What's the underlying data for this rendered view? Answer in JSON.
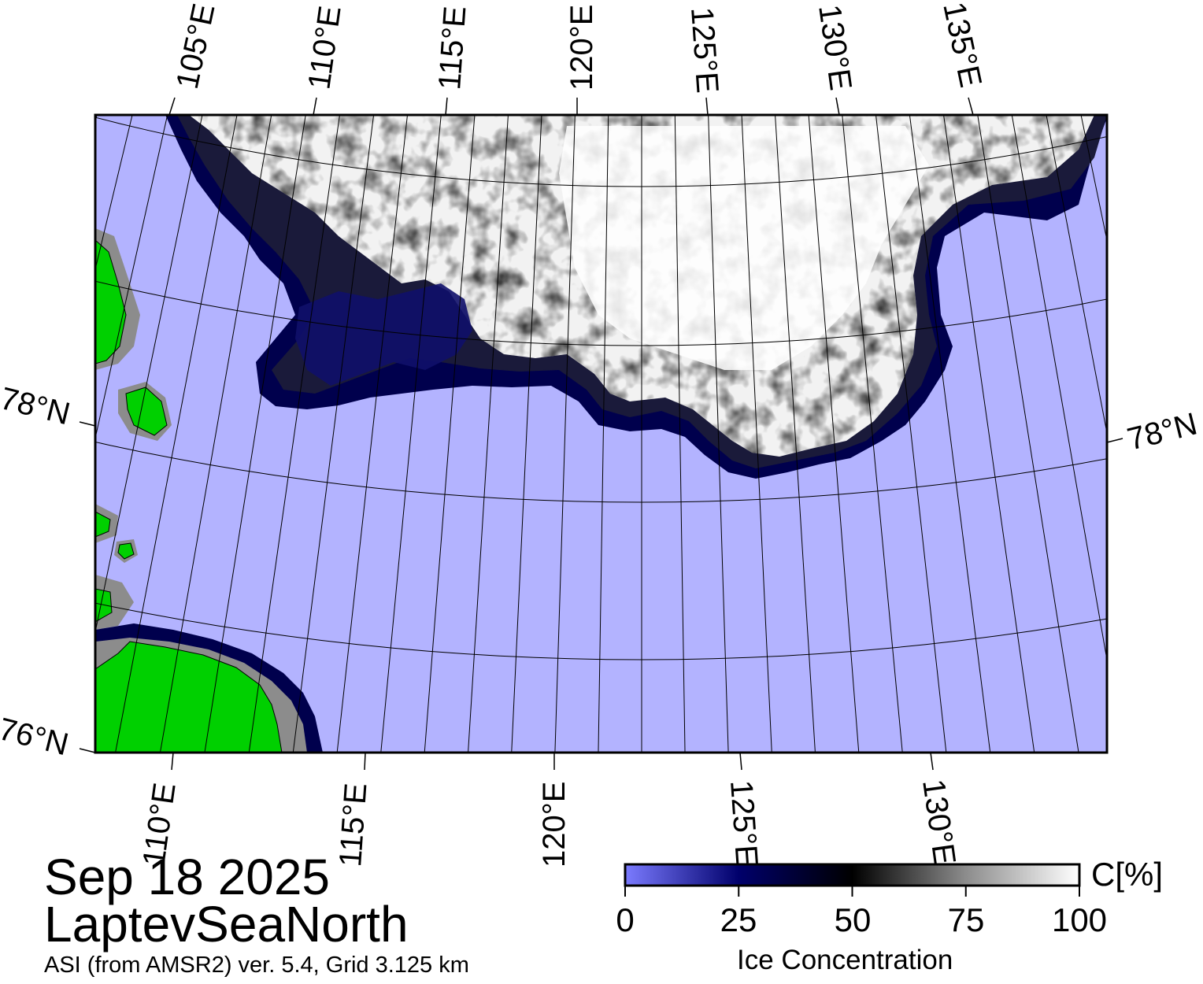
{
  "map": {
    "region_name": "LaptevSeaNorth",
    "date": "Sep 18 2025",
    "source": "ASI (from AMSR2) ver. 5.4,  Grid 3.125 km",
    "colors": {
      "open_water": "#b3b3ff",
      "land": "#00d000",
      "coast_mask": "#8c8c8c",
      "ice_high": "#ffffff",
      "ice_mid": "#000000",
      "ice_low": "#00004d",
      "graticule": "#000000"
    },
    "top_longitude_labels": [
      "105°E",
      "110°E",
      "115°E",
      "120°E",
      "125°E",
      "130°E",
      "135°E"
    ],
    "bottom_longitude_labels": [
      "110°E",
      "115°E",
      "120°E",
      "125°E",
      "130°E"
    ],
    "latitude_labels_left": [
      "78°N",
      "76°N"
    ],
    "latitude_labels_right": [
      "78°N"
    ]
  },
  "colorbar": {
    "title": "Ice Concentration",
    "unit": "C[%]",
    "ticks": [
      "0",
      "25",
      "50",
      "75",
      "100"
    ],
    "range": [
      0,
      100
    ],
    "stops": [
      {
        "value": 0,
        "color": "#7b7bff"
      },
      {
        "value": 25,
        "color": "#00006b"
      },
      {
        "value": 50,
        "color": "#000000"
      },
      {
        "value": 75,
        "color": "#8c8c8c"
      },
      {
        "value": 100,
        "color": "#ffffff"
      }
    ]
  }
}
